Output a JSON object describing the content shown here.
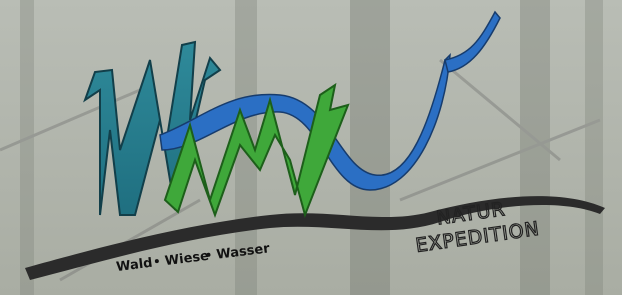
{
  "logo": {
    "tagline": [
      "Wald",
      "Wiese",
      "Wasser"
    ],
    "title_top": "NATUR",
    "title_bottom": "EXPEDITION"
  }
}
